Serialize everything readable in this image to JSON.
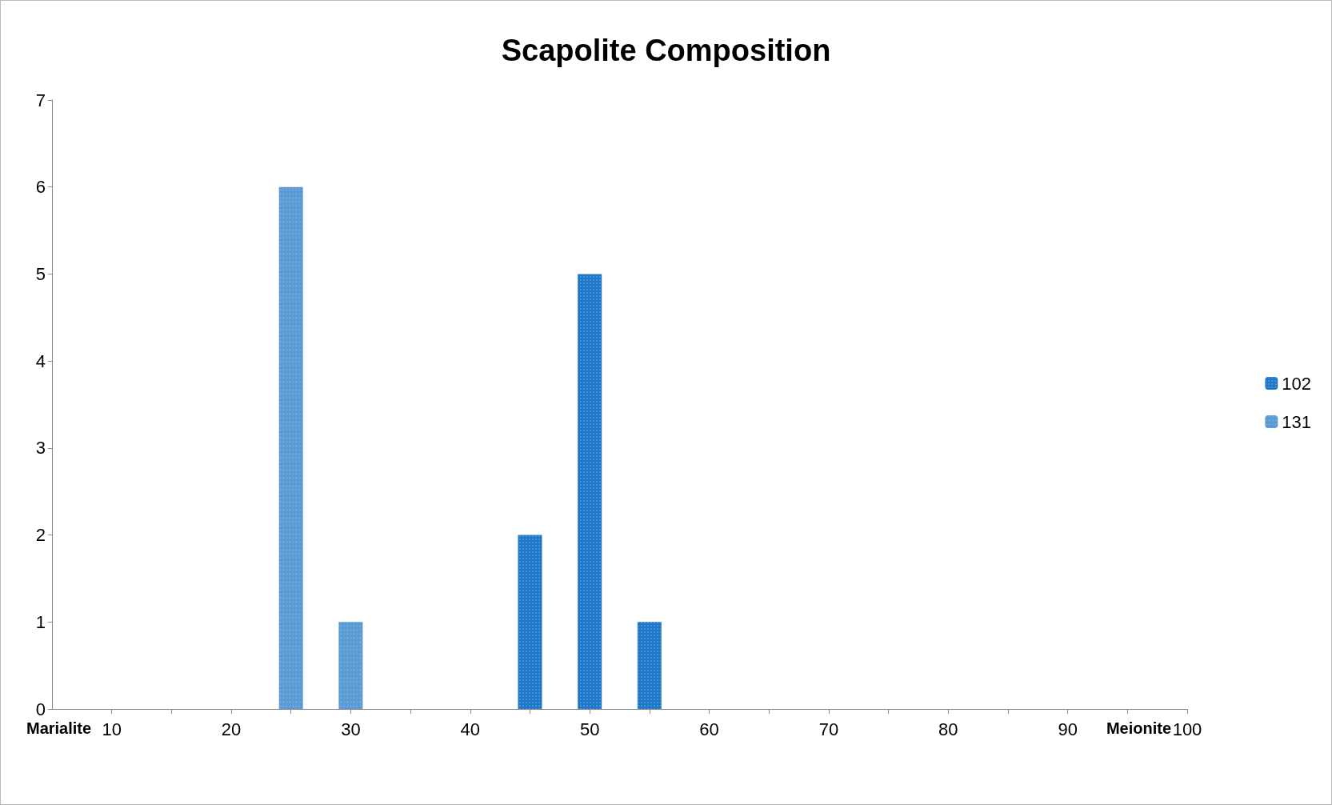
{
  "chart_data": {
    "type": "bar",
    "title": "Scapolite Composition",
    "series": [
      {
        "name": "102",
        "color": "#1f77c9",
        "x": [
          45,
          50,
          55
        ],
        "values": [
          2,
          5,
          1
        ]
      },
      {
        "name": "131",
        "color": "#5b9bd5",
        "x": [
          25,
          30
        ],
        "values": [
          6,
          1
        ]
      }
    ],
    "xlim": [
      5,
      100
    ],
    "xticks": [
      10,
      {
        "value": 15,
        "label": null
      },
      20,
      {
        "value": 25,
        "label": null
      },
      30,
      {
        "value": 35,
        "label": null
      },
      40,
      {
        "value": 45,
        "label": null
      },
      50,
      {
        "value": 55,
        "label": null
      },
      60,
      {
        "value": 65,
        "label": null
      },
      70,
      {
        "value": 75,
        "label": null
      },
      80,
      {
        "value": 85,
        "label": null
      },
      90,
      {
        "value": 95,
        "label": null
      },
      100
    ],
    "ylim": [
      0,
      7
    ],
    "yticks": [
      0,
      1,
      2,
      3,
      4,
      5,
      6,
      7
    ],
    "annotations": [
      "Marialite",
      "Meionite"
    ],
    "grid": false,
    "legend": "right"
  }
}
